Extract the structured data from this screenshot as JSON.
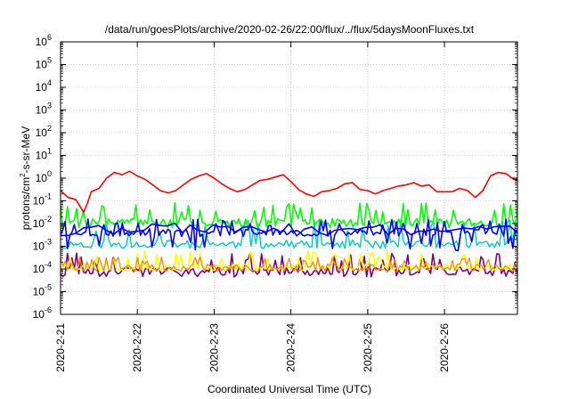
{
  "chart_data": {
    "type": "line",
    "title": "/data/run/goesPlots/archive/2020-02-26/22:00/flux/../flux/5daysMoonFluxes.txt",
    "xlabel": "Coordinated Universal Time (UTC)",
    "ylabel": {
      "base": "protons/cm",
      "sup": "2",
      "rest": "-s-sr-MeV"
    },
    "x_range_days": [
      0,
      5.95
    ],
    "x_ticks": [
      {
        "day": 0,
        "label": "2020-2-21"
      },
      {
        "day": 1,
        "label": "2020-2-22"
      },
      {
        "day": 2,
        "label": "2020-2-23"
      },
      {
        "day": 3,
        "label": "2020-2-24"
      },
      {
        "day": 4,
        "label": "2020-2-25"
      },
      {
        "day": 5,
        "label": "2020-2-26"
      }
    ],
    "y_scale": "log",
    "y_range_exp": [
      -6,
      6
    ],
    "y_ticks": [
      {
        "exp": -6,
        "base": "10",
        "sup": "-6"
      },
      {
        "exp": -5,
        "base": "10",
        "sup": "-5"
      },
      {
        "exp": -4,
        "base": "10",
        "sup": "-4"
      },
      {
        "exp": -3,
        "base": "10",
        "sup": "-3"
      },
      {
        "exp": -2,
        "base": "10",
        "sup": "-2"
      },
      {
        "exp": -1,
        "base": "10",
        "sup": "-1"
      },
      {
        "exp": 0,
        "base": "10",
        "sup": "0"
      },
      {
        "exp": 1,
        "base": "10",
        "sup": "1"
      },
      {
        "exp": 2,
        "base": "10",
        "sup": "2"
      },
      {
        "exp": 3,
        "base": "10",
        "sup": "3"
      },
      {
        "exp": 4,
        "base": "10",
        "sup": "4"
      },
      {
        "exp": 5,
        "base": "10",
        "sup": "5"
      },
      {
        "exp": 6,
        "base": "10",
        "sup": "6"
      }
    ],
    "grid": true,
    "series": [
      {
        "color": "#ff0000",
        "width": 1.6,
        "points": [
          [
            0,
            -0.55
          ],
          [
            0.1,
            -0.85
          ],
          [
            0.2,
            -0.95
          ],
          [
            0.3,
            -1.5
          ],
          [
            0.35,
            -1.1
          ],
          [
            0.4,
            -0.6
          ],
          [
            0.5,
            -0.45
          ],
          [
            0.6,
            0.0
          ],
          [
            0.7,
            0.25
          ],
          [
            0.8,
            0.15
          ],
          [
            0.9,
            0.3
          ],
          [
            1.0,
            0.1
          ],
          [
            1.1,
            -0.05
          ],
          [
            1.2,
            -0.3
          ],
          [
            1.3,
            -0.55
          ],
          [
            1.4,
            -0.65
          ],
          [
            1.5,
            -0.55
          ],
          [
            1.6,
            -0.3
          ],
          [
            1.7,
            -0.05
          ],
          [
            1.8,
            0.1
          ],
          [
            1.9,
            0.2
          ],
          [
            2.0,
            0.0
          ],
          [
            2.1,
            -0.25
          ],
          [
            2.2,
            -0.45
          ],
          [
            2.3,
            -0.6
          ],
          [
            2.4,
            -0.5
          ],
          [
            2.5,
            -0.3
          ],
          [
            2.6,
            -0.1
          ],
          [
            2.7,
            -0.05
          ],
          [
            2.8,
            0.05
          ],
          [
            2.9,
            0.15
          ],
          [
            3.0,
            -0.15
          ],
          [
            3.1,
            -0.5
          ],
          [
            3.2,
            -0.7
          ],
          [
            3.3,
            -0.8
          ],
          [
            3.4,
            -0.6
          ],
          [
            3.5,
            -0.55
          ],
          [
            3.6,
            -0.45
          ],
          [
            3.7,
            -0.25
          ],
          [
            3.8,
            -0.2
          ],
          [
            3.9,
            -0.5
          ],
          [
            4.0,
            -0.55
          ],
          [
            4.1,
            -0.7
          ],
          [
            4.2,
            -0.55
          ],
          [
            4.3,
            -0.45
          ],
          [
            4.4,
            -0.35
          ],
          [
            4.5,
            -0.3
          ],
          [
            4.6,
            -0.2
          ],
          [
            4.7,
            -0.35
          ],
          [
            4.8,
            -0.3
          ],
          [
            4.9,
            -0.6
          ],
          [
            5.0,
            -0.6
          ],
          [
            5.1,
            -0.6
          ],
          [
            5.2,
            -0.45
          ],
          [
            5.3,
            -0.55
          ],
          [
            5.4,
            -0.85
          ],
          [
            5.5,
            -0.55
          ],
          [
            5.6,
            0.1
          ],
          [
            5.7,
            0.25
          ],
          [
            5.8,
            0.2
          ],
          [
            5.9,
            -0.05
          ],
          [
            5.95,
            -0.1
          ]
        ]
      },
      {
        "color": "#00ff00",
        "width": 1.6,
        "base": -1.95,
        "spike": 0.9,
        "dip": 0.25,
        "seed": 7,
        "n": 200
      },
      {
        "color": "#00ccc0",
        "width": 1.4,
        "base": -2.9,
        "spike": 1.1,
        "dip": 0.2,
        "seed": 11,
        "n": 180
      },
      {
        "color": "#0000ff",
        "width": 1.6,
        "base": -2.4,
        "spike": 0.6,
        "dip": 0.8,
        "seed": 3,
        "n": 200
      },
      {
        "color": "#0000ff",
        "width": 1.6,
        "base": -2.25,
        "spike": 0.3,
        "dip": 0.3,
        "seed": 19,
        "n": 60
      },
      {
        "color": "#ffff00",
        "width": 1.6,
        "base": -3.9,
        "spike": 0.7,
        "dip": 0.15,
        "seed": 23,
        "n": 190
      },
      {
        "color": "#ff8000",
        "width": 1.2,
        "base": -3.95,
        "spike": 0.5,
        "dip": 0.15,
        "seed": 29,
        "n": 190
      },
      {
        "color": "#800080",
        "width": 1.6,
        "base": -4.1,
        "spike": 0.8,
        "dip": 0.25,
        "seed": 31,
        "n": 200
      }
    ]
  }
}
